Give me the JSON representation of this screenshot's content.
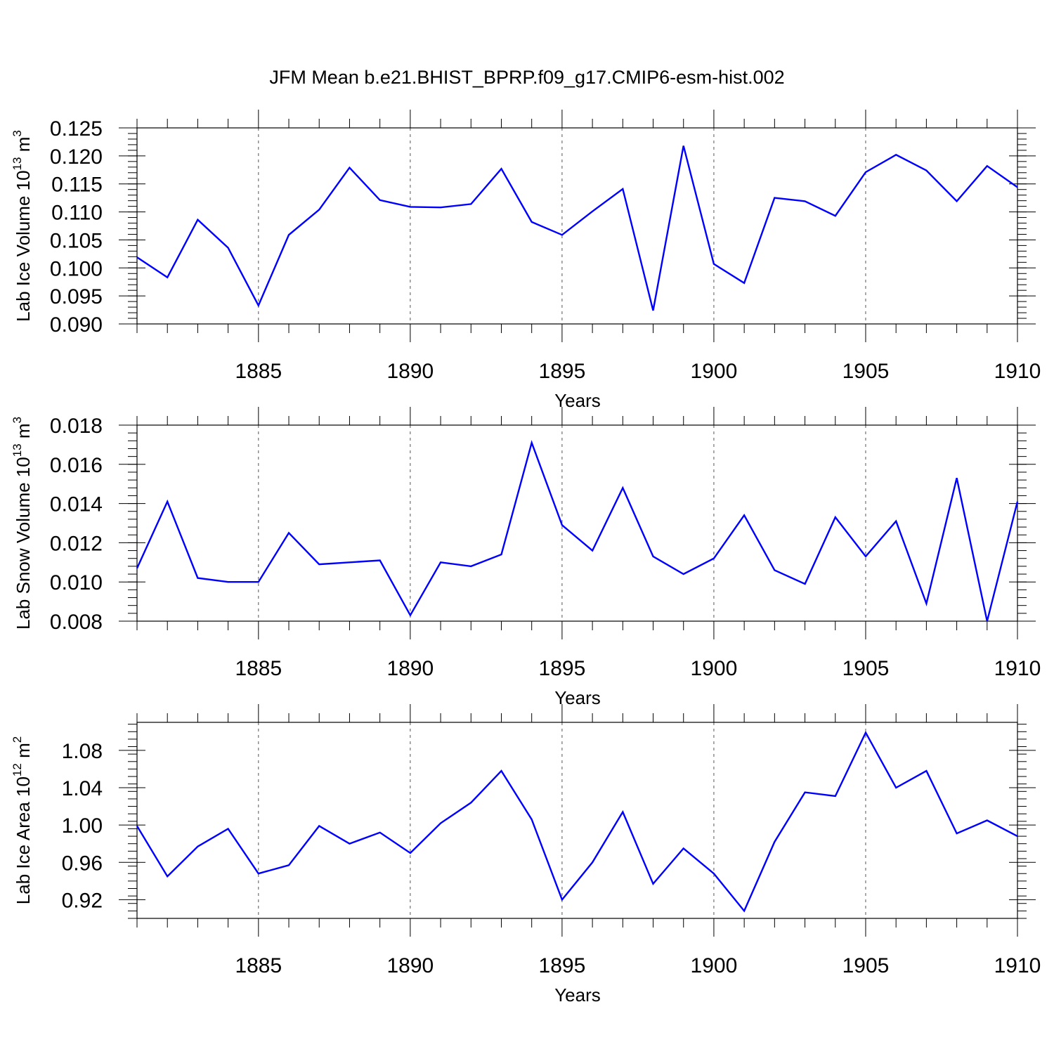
{
  "title": "JFM Mean b.e21.BHIST_BPRP.f09_g17.CMIP6-esm-hist.002",
  "chart_data": [
    {
      "type": "line",
      "ylabel_main": "Lab Ice Volume 10",
      "ylabel_exp": "13",
      "ylabel_unit": " m",
      "ylabel_unit_exp": "3",
      "xlabel": "Years",
      "xlim": [
        1881,
        1910
      ],
      "ylim": [
        0.09,
        0.125
      ],
      "yticks": [
        "0.090",
        "0.095",
        "0.100",
        "0.105",
        "0.110",
        "0.115",
        "0.120",
        "0.125"
      ],
      "xticks": [
        "1885",
        "1890",
        "1895",
        "1900",
        "1905",
        "1910"
      ],
      "x": [
        1881,
        1882,
        1883,
        1884,
        1885,
        1886,
        1887,
        1888,
        1889,
        1890,
        1891,
        1892,
        1893,
        1894,
        1895,
        1896,
        1897,
        1898,
        1899,
        1900,
        1901,
        1902,
        1903,
        1904,
        1905,
        1906,
        1907,
        1908,
        1909,
        1910
      ],
      "values": [
        0.1019,
        0.0983,
        0.1086,
        0.1036,
        0.0933,
        0.1059,
        0.1104,
        0.1179,
        0.1121,
        0.1109,
        0.1108,
        0.1114,
        0.1177,
        0.1082,
        0.1059,
        0.1101,
        0.1141,
        0.0924,
        0.1218,
        0.1007,
        0.0973,
        0.1125,
        0.1119,
        0.1093,
        0.1171,
        0.1202,
        0.1174,
        0.1119,
        0.1182,
        0.1144
      ]
    },
    {
      "type": "line",
      "ylabel_main": "Lab Snow Volume 10",
      "ylabel_exp": "13",
      "ylabel_unit": " m",
      "ylabel_unit_exp": "3",
      "xlabel": "Years",
      "xlim": [
        1881,
        1910
      ],
      "ylim": [
        0.008,
        0.018
      ],
      "yticks": [
        "0.008",
        "0.010",
        "0.012",
        "0.014",
        "0.016",
        "0.018"
      ],
      "xticks": [
        "1885",
        "1890",
        "1895",
        "1900",
        "1905",
        "1910"
      ],
      "x": [
        1881,
        1882,
        1883,
        1884,
        1885,
        1886,
        1887,
        1888,
        1889,
        1890,
        1891,
        1892,
        1893,
        1894,
        1895,
        1896,
        1897,
        1898,
        1899,
        1900,
        1901,
        1902,
        1903,
        1904,
        1905,
        1906,
        1907,
        1908,
        1909,
        1910
      ],
      "values": [
        0.0107,
        0.0141,
        0.0102,
        0.01,
        0.01,
        0.0125,
        0.0109,
        0.011,
        0.0111,
        0.0083,
        0.011,
        0.0108,
        0.0114,
        0.0171,
        0.0129,
        0.0116,
        0.0148,
        0.0113,
        0.0104,
        0.0112,
        0.0134,
        0.0106,
        0.0099,
        0.0133,
        0.0113,
        0.0131,
        0.0089,
        0.0153,
        0.008,
        0.0141
      ]
    },
    {
      "type": "line",
      "ylabel_main": "Lab Ice Area 10",
      "ylabel_exp": "12",
      "ylabel_unit": " m",
      "ylabel_unit_exp": "2",
      "xlabel": "Years",
      "xlim": [
        1881,
        1910
      ],
      "ylim": [
        0.9,
        1.11
      ],
      "yticks": [
        "0.92",
        "0.96",
        "1.00",
        "1.04",
        "1.08"
      ],
      "xticks": [
        "1885",
        "1890",
        "1895",
        "1900",
        "1905",
        "1910"
      ],
      "x": [
        1881,
        1882,
        1883,
        1884,
        1885,
        1886,
        1887,
        1888,
        1889,
        1890,
        1891,
        1892,
        1893,
        1894,
        1895,
        1896,
        1897,
        1898,
        1899,
        1900,
        1901,
        1902,
        1903,
        1904,
        1905,
        1906,
        1907,
        1908,
        1909,
        1910
      ],
      "values": [
        0.999,
        0.945,
        0.977,
        0.996,
        0.948,
        0.957,
        0.999,
        0.98,
        0.992,
        0.97,
        1.002,
        1.024,
        1.058,
        1.006,
        0.92,
        0.96,
        1.014,
        0.937,
        0.975,
        0.948,
        0.908,
        0.982,
        1.035,
        1.031,
        1.099,
        1.04,
        1.058,
        0.991,
        1.005,
        0.988
      ]
    }
  ]
}
